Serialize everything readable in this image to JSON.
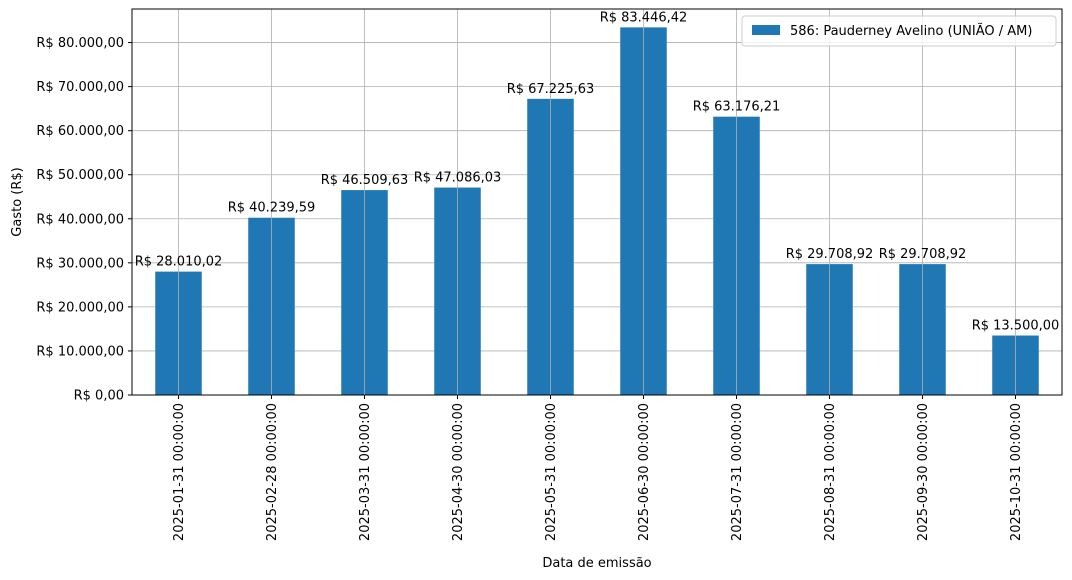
{
  "chart_data": {
    "type": "bar",
    "categories": [
      "2025-01-31 00:00:00",
      "2025-02-28 00:00:00",
      "2025-03-31 00:00:00",
      "2025-04-30 00:00:00",
      "2025-05-31 00:00:00",
      "2025-06-30 00:00:00",
      "2025-07-31 00:00:00",
      "2025-08-31 00:00:00",
      "2025-09-30 00:00:00",
      "2025-10-31 00:00:00"
    ],
    "series": [
      {
        "name": "586: Pauderney Avelino (UNIÃO / AM)",
        "values": [
          28010.02,
          40239.59,
          46509.63,
          47086.03,
          67225.63,
          83446.42,
          63176.21,
          29708.92,
          29708.92,
          13500.0
        ],
        "data_labels": [
          "R$ 28.010,02",
          "R$ 40.239,59",
          "R$ 46.509,63",
          "R$ 47.086,03",
          "R$ 67.225,63",
          "R$ 83.446,42",
          "R$ 63.176,21",
          "R$ 29.708,92",
          "R$ 29.708,92",
          "R$ 13.500,00"
        ],
        "color": "#1f77b4"
      }
    ],
    "xlabel": "Data de emissão",
    "ylabel": "Gasto (R$)",
    "ylim": [
      0,
      87618.74
    ],
    "yticks": [
      0,
      10000,
      20000,
      30000,
      40000,
      50000,
      60000,
      70000,
      80000
    ],
    "ytick_labels": [
      "R$ 0,00",
      "R$ 10.000,00",
      "R$ 20.000,00",
      "R$ 30.000,00",
      "R$ 40.000,00",
      "R$ 50.000,00",
      "R$ 60.000,00",
      "R$ 70.000,00",
      "R$ 80.000,00"
    ],
    "grid": true,
    "legend": "upper-right"
  }
}
